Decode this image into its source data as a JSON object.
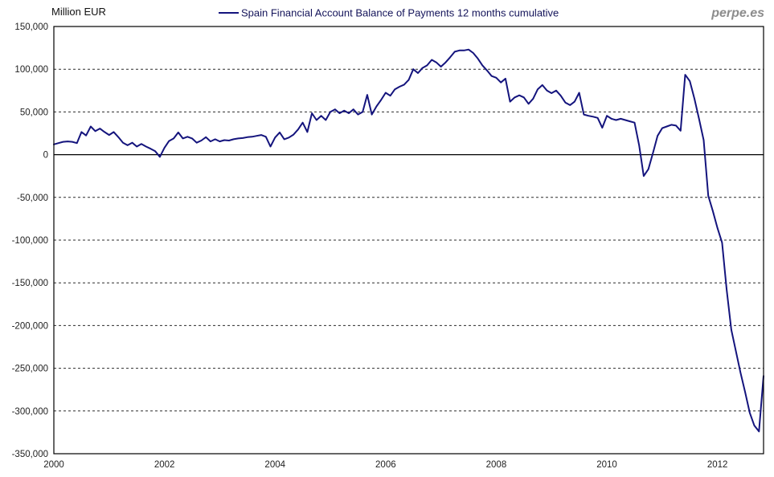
{
  "header": {
    "unit_label": "Million EUR",
    "watermark": "perpe.es"
  },
  "legend": {
    "label": "Spain Financial Account Balance of Payments 12 months cumulative"
  },
  "chart_data": {
    "type": "line",
    "title": "Spain Financial Account Balance of Payments 12 months cumulative",
    "ylabel": "Million EUR",
    "xlabel": "",
    "frequency": "monthly",
    "x_start": "2000-01",
    "x_end": "2012-11",
    "ylim": [
      -350000,
      150000
    ],
    "grid": "horizontal-dashed",
    "zero_line": "solid",
    "legend_position": "top-center",
    "colors": {
      "line": "#14147d",
      "axis": "#000000",
      "gridline": "#2b2b2b",
      "text": "#1f1f1f",
      "legend_text": "#14145a",
      "watermark": "#8c8c8c",
      "background": "#ffffff"
    },
    "y_ticks": [
      {
        "v": 150000,
        "label": "150,000"
      },
      {
        "v": 100000,
        "label": "100,000"
      },
      {
        "v": 50000,
        "label": "50,000"
      },
      {
        "v": 0,
        "label": "0"
      },
      {
        "v": -50000,
        "label": "-50,000"
      },
      {
        "v": -100000,
        "label": "-100,000"
      },
      {
        "v": -150000,
        "label": "-150,000"
      },
      {
        "v": -200000,
        "label": "-200,000"
      },
      {
        "v": -250000,
        "label": "-250,000"
      },
      {
        "v": -300000,
        "label": "-300,000"
      },
      {
        "v": -350000,
        "label": "-350,000"
      }
    ],
    "x_ticks": [
      {
        "year": 2000,
        "label": "2000"
      },
      {
        "year": 2002,
        "label": "2002"
      },
      {
        "year": 2004,
        "label": "2004"
      },
      {
        "year": 2006,
        "label": "2006"
      },
      {
        "year": 2008,
        "label": "2008"
      },
      {
        "year": 2010,
        "label": "2010"
      },
      {
        "year": 2012,
        "label": "2012"
      }
    ],
    "series": [
      {
        "name": "Spain Financial Account Balance of Payments 12 months cumulative",
        "values": [
          12000,
          13500,
          15000,
          15500,
          15000,
          13500,
          26500,
          22500,
          33000,
          27500,
          30500,
          26500,
          23000,
          26500,
          20500,
          14000,
          11000,
          14000,
          9500,
          12500,
          9500,
          7000,
          4000,
          -2500,
          8000,
          16000,
          19000,
          26000,
          19000,
          21000,
          19000,
          14000,
          16500,
          20500,
          15500,
          18000,
          15500,
          17000,
          16500,
          18000,
          19000,
          19500,
          20500,
          21000,
          22000,
          23000,
          21000,
          9500,
          20000,
          26000,
          18000,
          20000,
          23500,
          29500,
          37500,
          26500,
          48500,
          40500,
          45500,
          40500,
          50000,
          53000,
          48500,
          51500,
          48500,
          53000,
          47000,
          50000,
          70000,
          47000,
          56500,
          64000,
          72500,
          69000,
          76500,
          79500,
          82000,
          87500,
          100000,
          95500,
          101500,
          104500,
          111000,
          108000,
          103000,
          108000,
          114000,
          120500,
          122000,
          122000,
          123000,
          119000,
          112500,
          104500,
          98500,
          92000,
          90000,
          84500,
          89000,
          62000,
          67000,
          69500,
          67000,
          59500,
          65500,
          76500,
          81500,
          75000,
          72000,
          75000,
          69000,
          61000,
          58000,
          62000,
          72500,
          47000,
          45500,
          44500,
          43000,
          31500,
          45500,
          42000,
          40500,
          42000,
          40500,
          39000,
          37500,
          11000,
          -25000,
          -17000,
          2000,
          22000,
          31000,
          33000,
          35000,
          34000,
          28000,
          93500,
          86000,
          65500,
          42000,
          17000,
          -48000,
          -66000,
          -86000,
          -103000,
          -158000,
          -205000,
          -230000,
          -255000,
          -278000,
          -302000,
          -317000,
          -324000,
          -259000
        ]
      }
    ]
  }
}
